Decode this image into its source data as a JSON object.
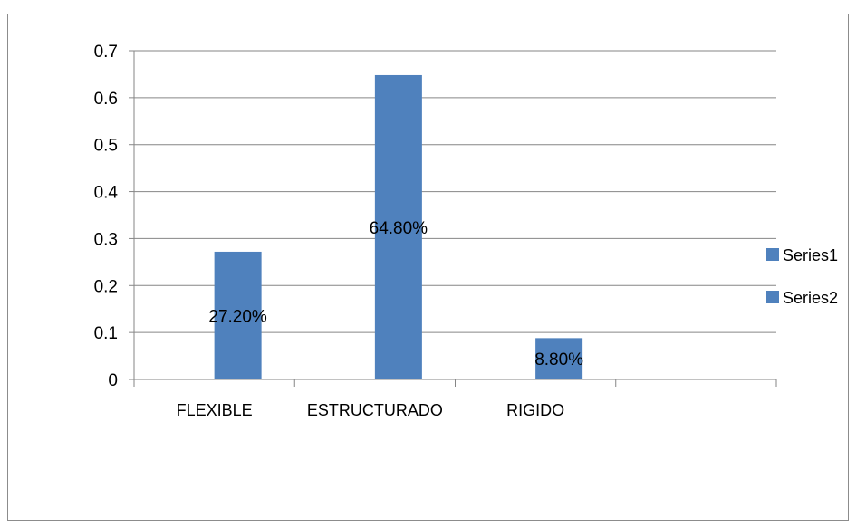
{
  "chart_data": {
    "type": "bar",
    "categories": [
      "FLEXIBLE",
      "ESTRUCTURADO",
      "RIGIDO",
      ""
    ],
    "series": [
      {
        "name": "Series1",
        "values": [
          null,
          null,
          null,
          null
        ],
        "color": "#4f81bd"
      },
      {
        "name": "Series2",
        "values": [
          0.272,
          0.648,
          0.088,
          null
        ],
        "color": "#4f81bd"
      }
    ],
    "data_labels": [
      "27.20%",
      "64.80%",
      "8.80%",
      ""
    ],
    "y_ticks": [
      "0",
      "0.1",
      "0.2",
      "0.3",
      "0.4",
      "0.5",
      "0.6",
      "0.7"
    ],
    "ylim": [
      0,
      0.7
    ],
    "title": "",
    "xlabel": "",
    "ylabel": "",
    "grid": true,
    "legend_position": "right"
  }
}
